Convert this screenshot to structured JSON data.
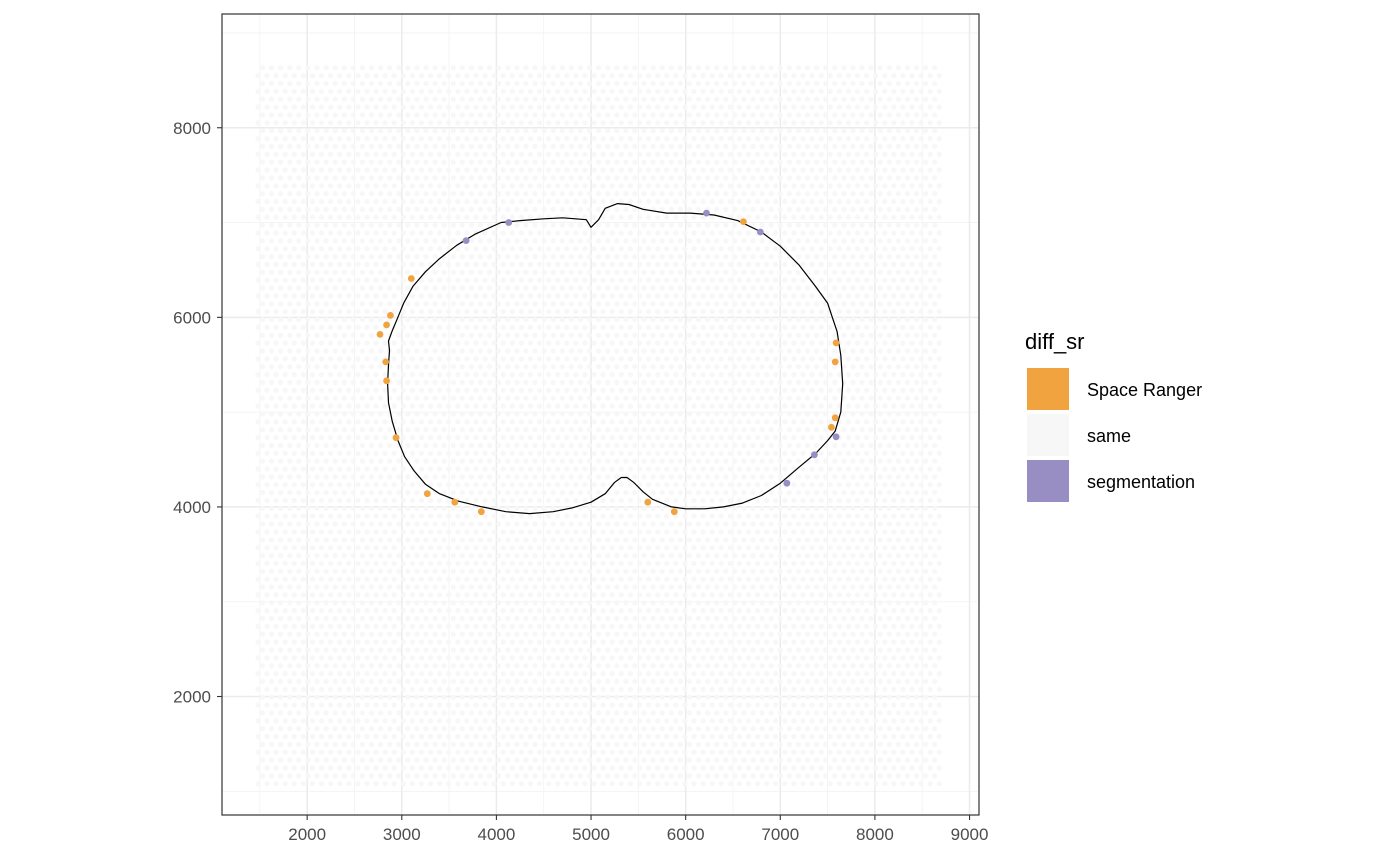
{
  "chart_data": {
    "type": "scatter",
    "title": "",
    "xlabel": "",
    "ylabel": "",
    "xlim": [
      1100,
      9100
    ],
    "ylim": [
      750,
      9200
    ],
    "x_ticks": [
      2000,
      3000,
      4000,
      5000,
      6000,
      7000,
      8000,
      9000
    ],
    "y_ticks": [
      2000,
      4000,
      6000,
      8000
    ],
    "x_tick_labels": [
      "2000",
      "3000",
      "4000",
      "5000",
      "6000",
      "7000",
      "8000",
      "9000"
    ],
    "y_tick_labels": [
      "2000",
      "4000",
      "6000",
      "8000"
    ],
    "grid": true,
    "legend": {
      "title": "diff_sr",
      "placement": "right",
      "entries": [
        {
          "label": "Space Ranger",
          "color": "#F1A340"
        },
        {
          "label": "same",
          "color": "#F7F7F7"
        },
        {
          "label": "segmentation",
          "color": "#998EC3"
        }
      ]
    },
    "background_spots": {
      "category": "same",
      "x_range": [
        1480,
        8680
      ],
      "y_range": [
        1080,
        8700
      ],
      "x_step": 96,
      "y_step": 83
    },
    "series": [
      {
        "name": "Space Ranger",
        "color": "#F1A340",
        "points": [
          [
            3100,
            6410
          ],
          [
            2880,
            6020
          ],
          [
            2840,
            5920
          ],
          [
            2770,
            5820
          ],
          [
            2830,
            5530
          ],
          [
            2840,
            5330
          ],
          [
            2940,
            4730
          ],
          [
            3270,
            4140
          ],
          [
            3560,
            4050
          ],
          [
            3840,
            3950
          ],
          [
            5600,
            4050
          ],
          [
            5880,
            3950
          ],
          [
            6610,
            7010
          ],
          [
            7590,
            5730
          ],
          [
            7580,
            5530
          ],
          [
            7580,
            4940
          ],
          [
            7540,
            4840
          ]
        ]
      },
      {
        "name": "segmentation",
        "color": "#998EC3",
        "points": [
          [
            3680,
            6810
          ],
          [
            4130,
            7000
          ],
          [
            6220,
            7100
          ],
          [
            6790,
            6900
          ],
          [
            7590,
            4740
          ],
          [
            7360,
            4550
          ],
          [
            7070,
            4250
          ]
        ]
      }
    ],
    "outline": [
      [
        4050,
        7000
      ],
      [
        4250,
        7020
      ],
      [
        4500,
        7040
      ],
      [
        4700,
        7050
      ],
      [
        4950,
        7030
      ],
      [
        5000,
        6950
      ],
      [
        5080,
        7030
      ],
      [
        5150,
        7150
      ],
      [
        5280,
        7200
      ],
      [
        5400,
        7190
      ],
      [
        5550,
        7140
      ],
      [
        5800,
        7100
      ],
      [
        6050,
        7100
      ],
      [
        6300,
        7080
      ],
      [
        6550,
        7020
      ],
      [
        6800,
        6900
      ],
      [
        7000,
        6750
      ],
      [
        7200,
        6550
      ],
      [
        7370,
        6330
      ],
      [
        7500,
        6150
      ],
      [
        7550,
        6000
      ],
      [
        7600,
        5850
      ],
      [
        7640,
        5600
      ],
      [
        7660,
        5300
      ],
      [
        7640,
        5000
      ],
      [
        7580,
        4800
      ],
      [
        7500,
        4700
      ],
      [
        7380,
        4570
      ],
      [
        7200,
        4420
      ],
      [
        7000,
        4250
      ],
      [
        6800,
        4120
      ],
      [
        6600,
        4040
      ],
      [
        6400,
        4000
      ],
      [
        6200,
        3980
      ],
      [
        6000,
        3980
      ],
      [
        5850,
        4000
      ],
      [
        5650,
        4080
      ],
      [
        5550,
        4160
      ],
      [
        5450,
        4260
      ],
      [
        5380,
        4310
      ],
      [
        5320,
        4310
      ],
      [
        5250,
        4260
      ],
      [
        5150,
        4140
      ],
      [
        5000,
        4050
      ],
      [
        4800,
        3990
      ],
      [
        4600,
        3950
      ],
      [
        4350,
        3930
      ],
      [
        4100,
        3950
      ],
      [
        3850,
        4000
      ],
      [
        3600,
        4060
      ],
      [
        3400,
        4140
      ],
      [
        3250,
        4240
      ],
      [
        3130,
        4380
      ],
      [
        3030,
        4530
      ],
      [
        2960,
        4700
      ],
      [
        2900,
        4900
      ],
      [
        2860,
        5100
      ],
      [
        2850,
        5300
      ],
      [
        2860,
        5500
      ],
      [
        2870,
        5650
      ],
      [
        2860,
        5750
      ],
      [
        2900,
        5860
      ],
      [
        2950,
        5980
      ],
      [
        3020,
        6150
      ],
      [
        3120,
        6330
      ],
      [
        3250,
        6480
      ],
      [
        3400,
        6620
      ],
      [
        3580,
        6760
      ],
      [
        3780,
        6880
      ],
      [
        4050,
        7000
      ]
    ]
  }
}
